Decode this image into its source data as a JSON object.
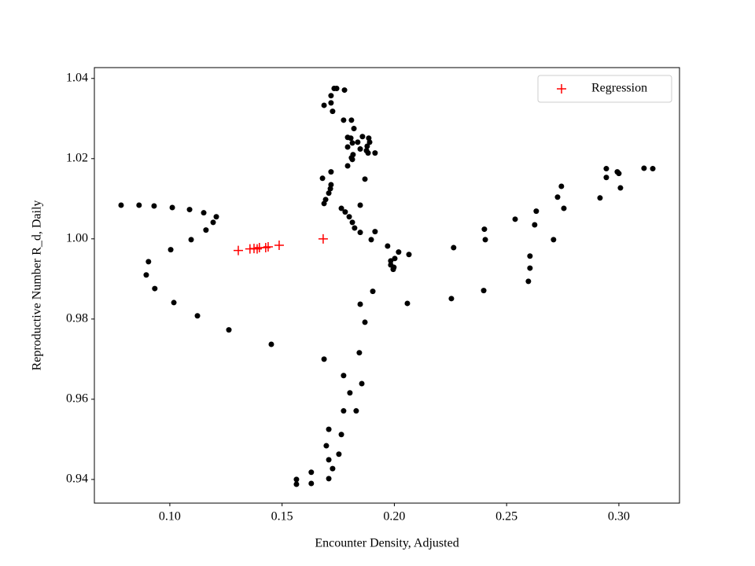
{
  "chart_data": {
    "type": "scatter",
    "xlabel": "Encounter Density, Adjusted",
    "ylabel": "Reproductive Number R_d, Daily",
    "xlim": [
      0.0664,
      0.327
    ],
    "ylim": [
      0.9341,
      1.0427
    ],
    "xticks": [
      {
        "value": 0.1,
        "label": "0.10"
      },
      0.15,
      {
        "value": 0.2,
        "label": "0.20"
      },
      0.25,
      {
        "value": 0.3,
        "label": "0.30"
      }
    ],
    "yticks": [
      0.94,
      0.96,
      0.98,
      {
        "value": 1.0,
        "label": "1.00"
      },
      1.02,
      1.04
    ],
    "legend": "upper right",
    "series": [
      {
        "color": "#000000",
        "marker": "dot",
        "x": [
          0.0783,
          0.0863,
          0.093,
          0.1011,
          0.1088,
          0.1151,
          0.1193,
          0.1207,
          0.1161,
          0.1095,
          0.1004,
          0.0905,
          0.0895,
          0.0933,
          0.1018,
          0.1123,
          0.1263,
          0.1452,
          0.1732,
          0.1743,
          0.1778,
          0.1687,
          0.1718,
          0.1718,
          0.1725,
          0.1774,
          0.1809,
          0.182,
          0.1792,
          0.1806,
          0.1858,
          0.1886,
          0.1813,
          0.1837,
          0.1792,
          0.1879,
          0.1848,
          0.189,
          0.1883,
          0.1914,
          0.1876,
          0.1816,
          0.1813,
          0.1809,
          0.1792,
          0.1718,
          0.168,
          0.1718,
          0.1715,
          0.1708,
          0.1694,
          0.1687,
          0.1869,
          0.1848,
          0.1764,
          0.1781,
          0.1799,
          0.1813,
          0.1823,
          0.1848,
          0.1897,
          0.1914,
          0.197,
          0.1984,
          0.1998,
          0.2002,
          0.2019,
          0.2065,
          0.1984,
          0.1995,
          0.1904,
          0.1848,
          0.1869,
          0.1844,
          0.1687,
          0.1774,
          0.1855,
          0.1802,
          0.1774,
          0.183,
          0.1708,
          0.1764,
          0.1697,
          0.1708,
          0.1753,
          0.1725,
          0.1708,
          0.163,
          0.1564,
          0.1564,
          0.163,
          0.2058,
          0.2254,
          0.2264,
          0.2398,
          0.2401,
          0.2405,
          0.2538,
          0.2632,
          0.2625,
          0.2604,
          0.2604,
          0.2597,
          0.2709,
          0.2727,
          0.2744,
          0.2755,
          0.2916,
          0.2944,
          0.2944,
          0.2993,
          0.3,
          0.3007,
          0.3112,
          0.3151
        ],
        "values": [
          1.0084,
          1.0084,
          1.0082,
          1.0078,
          1.0073,
          1.0065,
          1.0041,
          1.0055,
          1.0022,
          0.9998,
          0.9973,
          0.9943,
          0.991,
          0.9876,
          0.9841,
          0.9808,
          0.9773,
          0.9737,
          1.0375,
          1.0375,
          1.0371,
          1.0333,
          1.0357,
          1.0339,
          1.0318,
          1.0296,
          1.0296,
          1.0275,
          1.0253,
          1.0251,
          1.0255,
          1.0251,
          1.0239,
          1.0241,
          1.0229,
          1.0231,
          1.0224,
          1.0241,
          1.0214,
          1.0214,
          1.022,
          1.021,
          1.0198,
          1.0202,
          1.0182,
          1.0167,
          1.0151,
          1.0135,
          1.0125,
          1.0114,
          1.0098,
          1.0088,
          1.0149,
          1.0084,
          1.0076,
          1.0067,
          1.0055,
          1.0041,
          1.0027,
          1.0016,
          0.9998,
          1.0018,
          0.9982,
          0.9945,
          0.9929,
          0.9951,
          0.9967,
          0.9961,
          0.9935,
          0.9924,
          0.9869,
          0.9837,
          0.9792,
          0.9716,
          0.97,
          0.9659,
          0.9639,
          0.9616,
          0.9571,
          0.9571,
          0.9525,
          0.9512,
          0.9484,
          0.9449,
          0.9463,
          0.9427,
          0.9402,
          0.9418,
          0.94,
          0.9388,
          0.939,
          0.9839,
          0.9851,
          0.9978,
          0.9871,
          1.0024,
          0.9998,
          1.0049,
          1.0069,
          1.0035,
          0.9927,
          0.9957,
          0.9894,
          0.9998,
          1.0104,
          1.0131,
          1.0076,
          1.0102,
          1.0175,
          1.0153,
          1.0167,
          1.0163,
          1.0127,
          1.0176,
          1.0175
        ]
      },
      {
        "name": "Regression",
        "color": "#ff0000",
        "marker": "plus",
        "x": [
          0.1305,
          0.1357,
          0.1375,
          0.1389,
          0.1399,
          0.1427,
          0.1438,
          0.1487,
          0.1683
        ],
        "values": [
          0.9971,
          0.9975,
          0.9976,
          0.9975,
          0.9978,
          0.9978,
          0.998,
          0.9984,
          1.0
        ]
      }
    ]
  }
}
